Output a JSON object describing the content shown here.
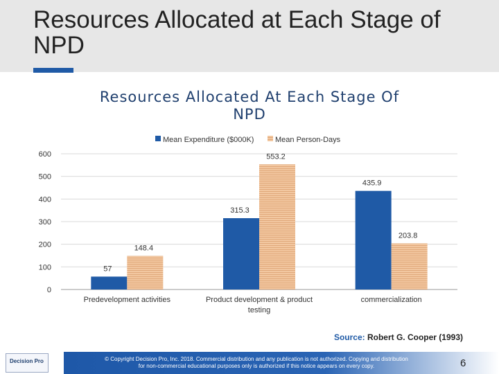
{
  "slide": {
    "title": "Resources Allocated at Each Stage of NPD",
    "page_number": "6",
    "source_label": "Source:",
    "source_text": " Robert G. Cooper (1993)",
    "copyright": "© Copyright Decision Pro, Inc. 2018. Commercial distribution and any publication is not authorized. Copying and distribution for non-commercial educational purposes only is authorized if this notice appears on every copy.",
    "logo_text": "Decision Pro",
    "colors": {
      "accent": "#1f5aa6",
      "title_band": "#e7e7e7"
    }
  },
  "chart_data": {
    "type": "bar",
    "title": "Resources Allocated At Each Stage Of NPD",
    "categories": [
      "Predevelopment activities",
      "Product development & product testing",
      "commercialization"
    ],
    "category_lines": [
      [
        "Predevelopment activities"
      ],
      [
        "Product development & product",
        "testing"
      ],
      [
        "commercialization"
      ]
    ],
    "series": [
      {
        "name": "Mean Expenditure ($000K)",
        "values": [
          57,
          315.3,
          435.9
        ],
        "color": "#1f5aa6"
      },
      {
        "name": "Mean Person-Days",
        "values": [
          148.4,
          553.2,
          203.8
        ],
        "color": "#f2c7a0"
      }
    ],
    "ylim": [
      0,
      600
    ],
    "yticks": [
      "0",
      "100",
      "200",
      "300",
      "400",
      "500",
      "600"
    ],
    "ytick_values": [
      0,
      100,
      200,
      300,
      400,
      500,
      600
    ],
    "grid": true,
    "legend": "top"
  }
}
